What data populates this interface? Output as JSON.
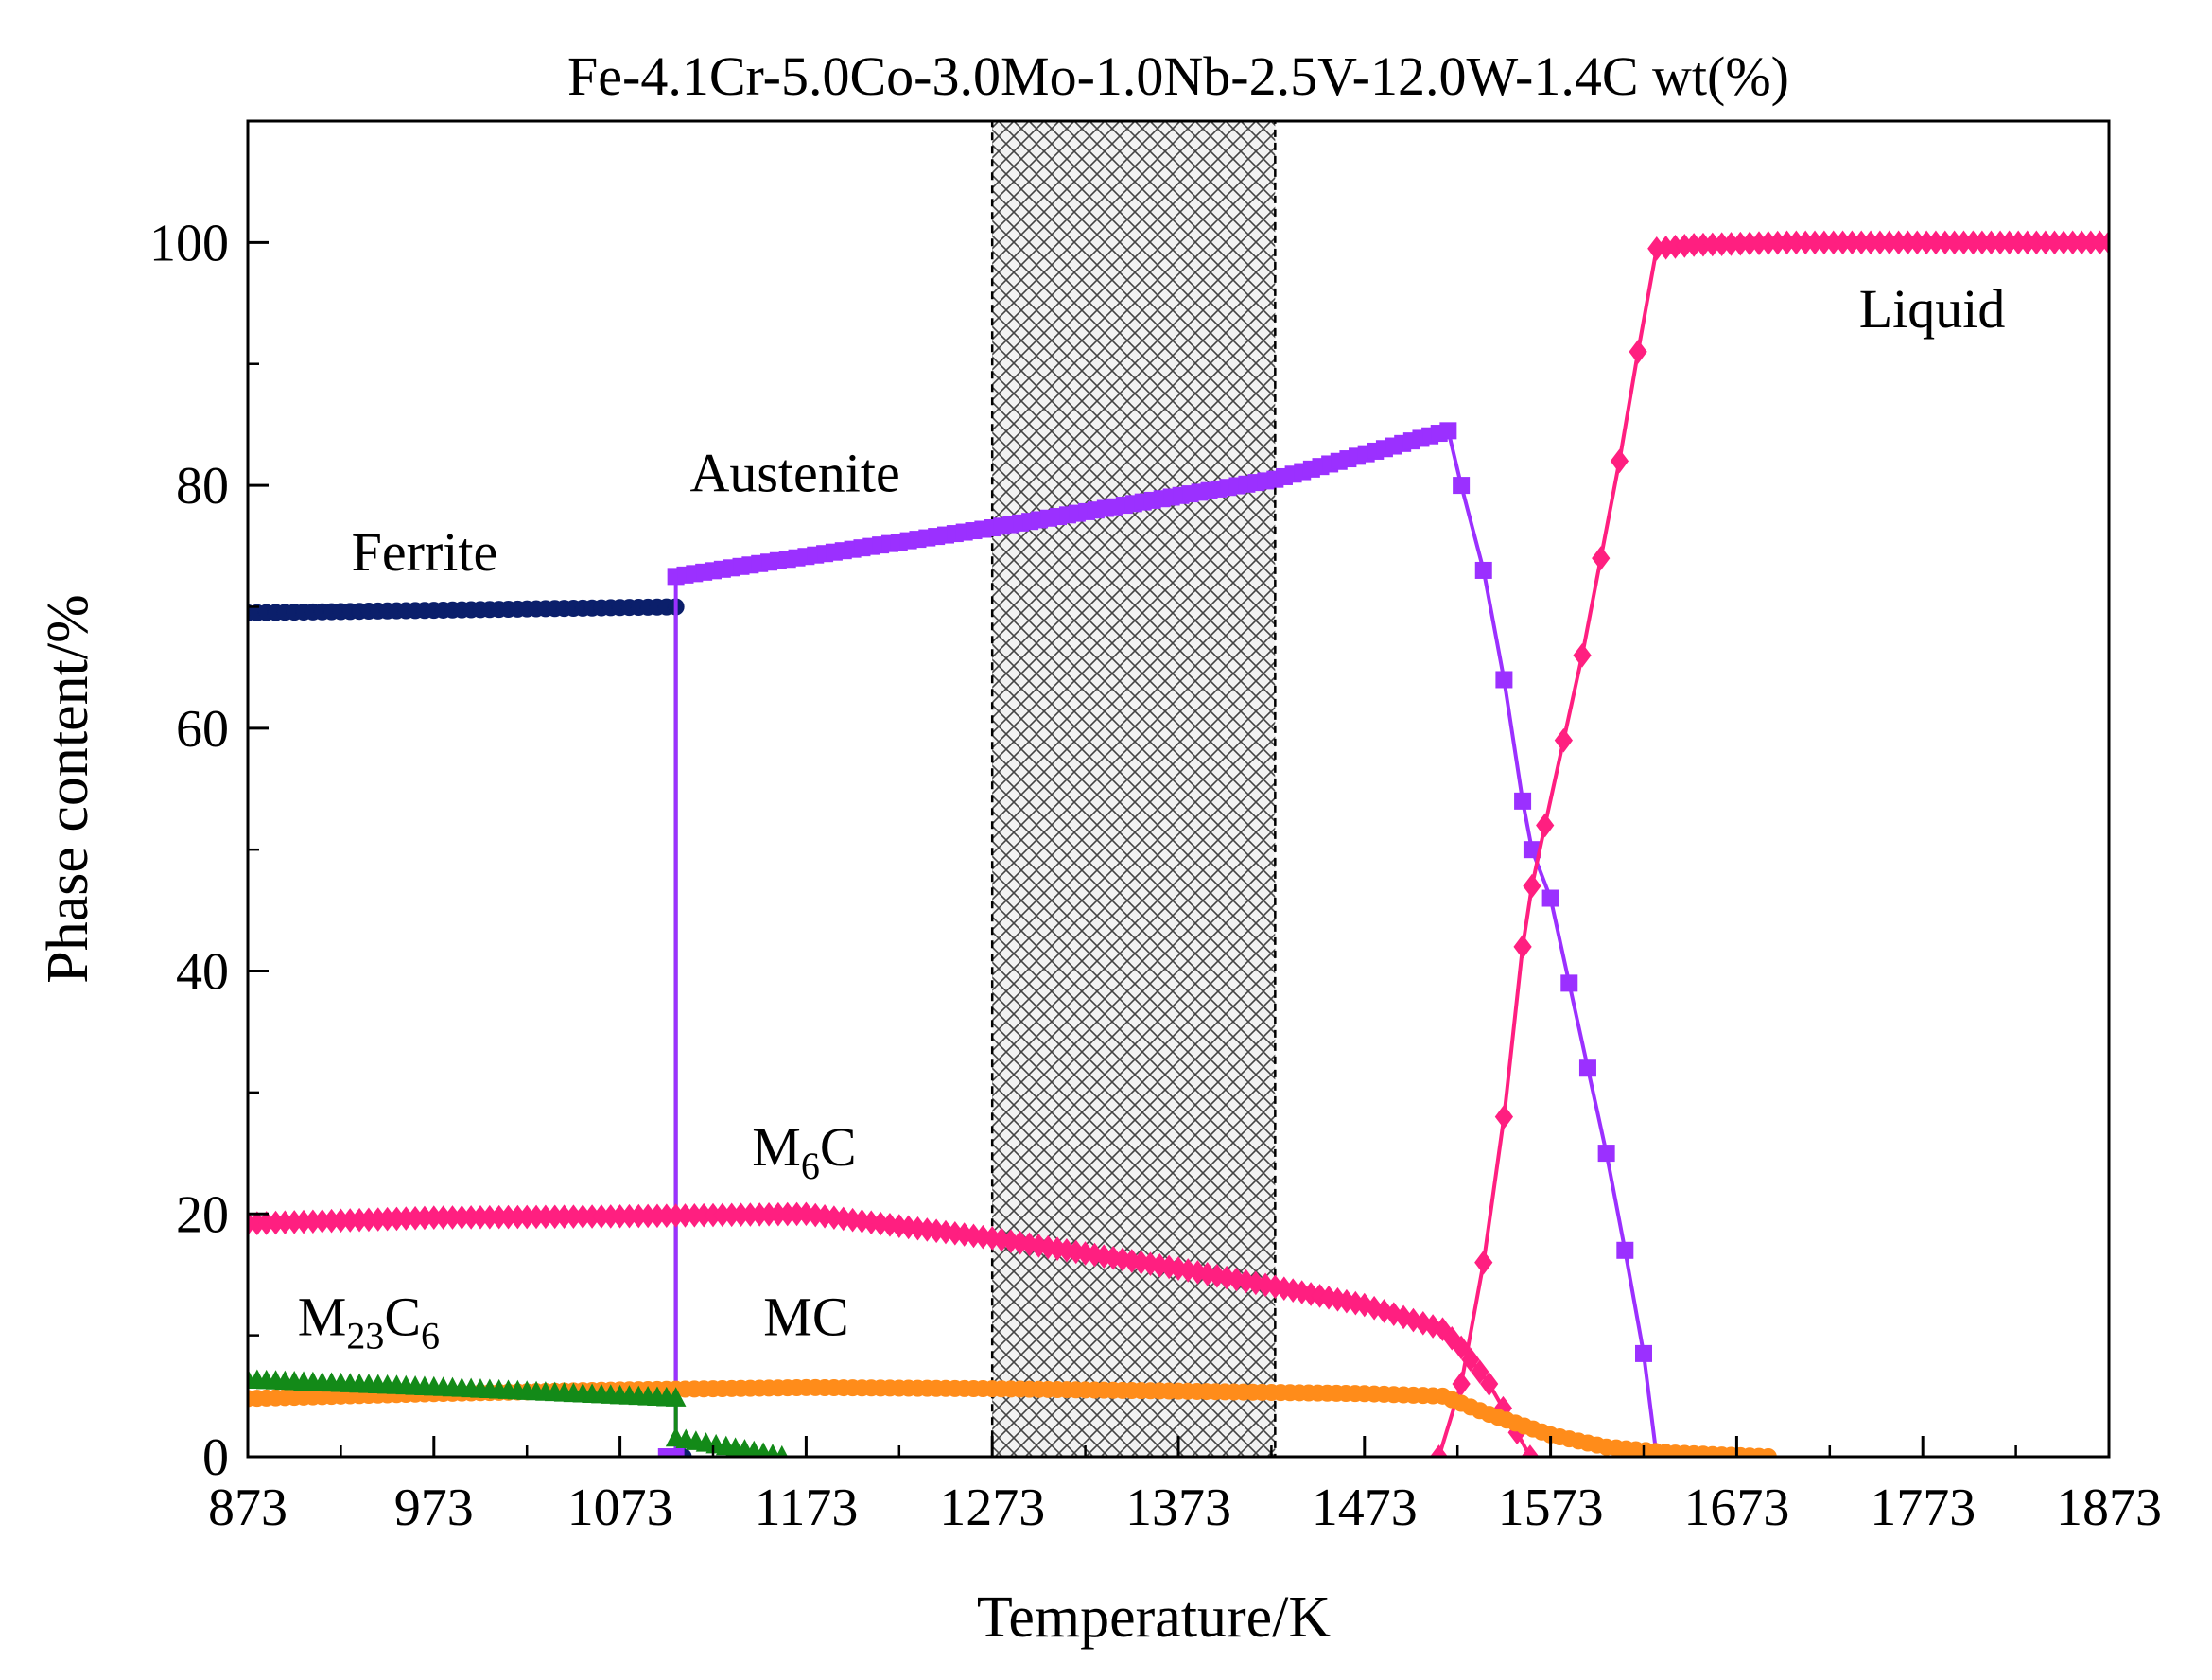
{
  "chart_data": {
    "type": "line",
    "title": "Fe-4.1Cr-5.0Co-3.0Mo-1.0Nb-2.5V-12.0W-1.4C wt(%)",
    "xlabel": "Temperature/K",
    "ylabel": "Phase content/%",
    "xlim": [
      873,
      1873
    ],
    "ylim": [
      0,
      110
    ],
    "xticks": [
      873,
      973,
      1073,
      1173,
      1273,
      1373,
      1473,
      1573,
      1673,
      1773,
      1873
    ],
    "yticks": [
      0,
      20,
      40,
      60,
      80,
      100
    ],
    "grid": false,
    "shaded_region": {
      "x": [
        1273,
        1425
      ],
      "pattern": "crosshatch"
    },
    "annotations": [
      {
        "id": "ferrite",
        "text": "Ferrite",
        "x": 968,
        "y": 73
      },
      {
        "id": "austenite",
        "text": "Austenite",
        "x": 1167,
        "y": 79.5
      },
      {
        "id": "liquid",
        "text": "Liquid",
        "x": 1778,
        "y": 93
      },
      {
        "id": "m6c",
        "main": "M",
        "sub": "6",
        "tail": "C",
        "x": 1172,
        "y": 24
      },
      {
        "id": "m23c6",
        "main": "M",
        "sub1": "23",
        "mid": "C",
        "sub2": "6",
        "x": 938,
        "y": 10
      },
      {
        "id": "mc",
        "text": "MC",
        "x": 1173,
        "y": 10
      }
    ],
    "series": [
      {
        "name": "Ferrite",
        "color": "#0b1f6b",
        "marker": "circle",
        "x": [
          873,
          1103,
          1103,
          1107
        ],
        "y": [
          69.5,
          70,
          0,
          0
        ]
      },
      {
        "name": "Austenite",
        "color": "#9b30ff",
        "marker": "square",
        "x": [
          1098,
          1103,
          1103,
          1273,
          1425,
          1518,
          1525,
          1537,
          1548,
          1558,
          1563,
          1573,
          1583,
          1593,
          1603,
          1613,
          1623,
          1630
        ],
        "y": [
          0,
          0,
          72.5,
          76.5,
          80.5,
          84.5,
          80,
          73,
          64,
          54,
          50,
          46,
          39,
          32,
          25,
          17,
          8.5,
          0
        ]
      },
      {
        "name": "Liquid",
        "color": "#ff1f80",
        "marker": "diamond",
        "x": [
          1513,
          1525,
          1537,
          1548,
          1558,
          1563,
          1570,
          1580,
          1590,
          1600,
          1610,
          1620,
          1630,
          1650,
          1700,
          1800,
          1873
        ],
        "y": [
          0,
          6,
          16,
          28,
          42,
          47,
          52,
          59,
          66,
          74,
          82,
          91,
          99.5,
          99.8,
          100,
          100,
          100
        ]
      },
      {
        "name": "M6C",
        "color": "#ff1f80",
        "marker": "diamond",
        "x": [
          873,
          973,
          1073,
          1173,
          1273,
          1373,
          1425,
          1473,
          1515,
          1525,
          1540,
          1555,
          1562
        ],
        "y": [
          19.2,
          19.7,
          19.8,
          20,
          18,
          15.5,
          14,
          12.5,
          10.5,
          9,
          6,
          2,
          0
        ]
      },
      {
        "name": "MC",
        "color": "#ff8c1a",
        "marker": "circle",
        "x": [
          873,
          973,
          1073,
          1173,
          1273,
          1373,
          1473,
          1515,
          1540,
          1573,
          1603,
          1640,
          1690
        ],
        "y": [
          4.8,
          5.2,
          5.5,
          5.7,
          5.6,
          5.4,
          5.2,
          5.0,
          3.5,
          1.8,
          0.8,
          0.3,
          0
        ]
      },
      {
        "name": "M23C6",
        "color": "#138a18",
        "marker": "triangle",
        "x": [
          873,
          973,
          1073,
          1103,
          1103,
          1130,
          1160
        ],
        "y": [
          6.3,
          5.7,
          5.0,
          4.8,
          1.5,
          0.8,
          0
        ]
      }
    ]
  }
}
